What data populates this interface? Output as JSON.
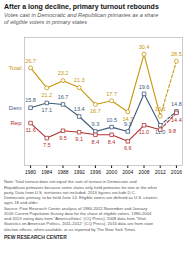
{
  "chart_data": {
    "type": "line",
    "title": "After a long decline, primary turnout rebounds",
    "subtitle": "Votes cast in Democratic and Republican primaries as a share\nof eligible voters in primary states",
    "x": [
      1980,
      1984,
      1988,
      1992,
      1996,
      2000,
      2004,
      2008,
      2012,
      2016
    ],
    "xlim": [
      1978.5,
      2017.5
    ],
    "xticks": [
      1980,
      1984,
      1988,
      1992,
      1996,
      2000,
      2004,
      2008,
      2012,
      2016
    ],
    "ylim": [
      0,
      35
    ],
    "tick_labels": "x",
    "data_labels": true,
    "series": [
      {
        "name": "Total",
        "color": "#c8960c",
        "marker": "circle",
        "values": [
          26.7,
          21.2,
          23.2,
          21.3,
          16.7,
          17.7,
          14.7,
          30.4,
          13.5,
          28.5
        ],
        "value_labels": [
          "26.7",
          "21.2",
          "23.2",
          "21.3",
          "16.7",
          "17.7",
          "14.7",
          "30.4",
          "13.5",
          "28.5"
        ]
      },
      {
        "name": "Dem",
        "color": "#3d5a7a",
        "marker": "square",
        "values": [
          15.8,
          17.1,
          16.7,
          13.4,
          9.3,
          10.5,
          9.3,
          19.6,
          11.0,
          14.8
        ],
        "value_labels": [
          "15.8",
          "17.1",
          "16.7",
          "13.4",
          "9.3",
          "10.5",
          "9.3",
          "19.6",
          "11.0",
          "14.8"
        ]
      },
      {
        "name": "Rep",
        "color": "#b03030",
        "marker": "square",
        "values": [
          11.6,
          7.5,
          9.5,
          9.1,
          8.4,
          8.4,
          6.6,
          11.0,
          9.8,
          14.4
        ],
        "value_labels": [
          "11.6",
          "7.5",
          "9.5",
          "9.1",
          "8.4",
          "8.4",
          "6.6",
          "11.0",
          "9.8",
          "14.4"
        ]
      }
    ],
    "annotations": [
      "Note: Total turnout does not equal the sum of turnout in Democratic and\nRepublican primaries because some states only held primaries for one or the other\nparty. Data from U.S. territories not included. 2016 figures exclude D.C.\nDemocratic primary, to be held June 14. Eligible voters are defined as U.S. citizens\nages 18 and older.\nSource: Pew Research Center analysis of 1980-2012 November and January\n2016 Current Population Survey data for the share of eligible voters. 1980-2004\nand 2013 voting data from “AmericaVotes” (CQ Press); 2008 data from “Vital\nStatistics on American Politics, 2011-2012” (CQ Press). 2016 data are from state\nelection offices, when available, or as reported by The New York Times.",
      "PEW RESEARCH CENTER"
    ]
  }
}
